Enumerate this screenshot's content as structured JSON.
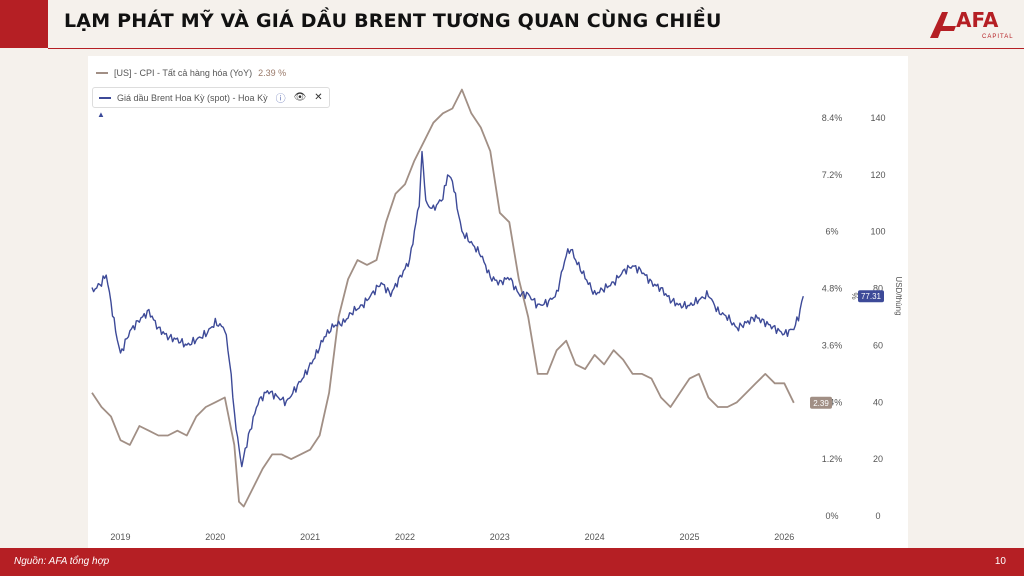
{
  "header": {
    "title": "LẠM PHÁT MỸ VÀ GIÁ DẦU BRENT TƯƠNG QUAN CÙNG CHIỀU",
    "logo_text": "AFA",
    "logo_sub": "CAPITAL"
  },
  "legend": {
    "series1_label": "[US] - CPI - Tất cả hàng hóa (YoY)",
    "series1_value": "2.39 %",
    "series2_label": "Giá dầu Brent Hoa Kỳ (spot) - Hoa Kỳ"
  },
  "footer": {
    "source": "Nguồn: AFA tổng hợp",
    "page": "10"
  },
  "chart_data": {
    "type": "line",
    "x_ticks": [
      "2019",
      "2020",
      "2021",
      "2022",
      "2023",
      "2024",
      "2025",
      "2026"
    ],
    "y_left_ticks": [
      "0%",
      "1.2%",
      "2.4%",
      "3.6%",
      "4.8%",
      "6%",
      "7.2%",
      "8.4%"
    ],
    "y_left_label": "%",
    "y_left_range": [
      0,
      8.4
    ],
    "y_right_ticks": [
      "0",
      "20",
      "40",
      "60",
      "80",
      "100",
      "120",
      "140"
    ],
    "y_right_label": "USD/thùng",
    "y_right_range": [
      0,
      140
    ],
    "x_range": [
      2018.7,
      2026.25
    ],
    "last_labels": {
      "cpi": "2.39",
      "oil": "77.31"
    },
    "colors": {
      "cpi": "#a18f85",
      "oil": "#3d4a98"
    },
    "series": [
      {
        "name": "[US] - CPI - Tất cả hàng hóa (YoY)",
        "axis": "left",
        "x": [
          2018.7,
          2018.8,
          2018.9,
          2019.0,
          2019.1,
          2019.2,
          2019.3,
          2019.4,
          2019.5,
          2019.6,
          2019.7,
          2019.8,
          2019.9,
          2020.0,
          2020.1,
          2020.2,
          2020.25,
          2020.3,
          2020.4,
          2020.5,
          2020.6,
          2020.7,
          2020.8,
          2020.9,
          2021.0,
          2021.1,
          2021.2,
          2021.3,
          2021.4,
          2021.5,
          2021.6,
          2021.7,
          2021.8,
          2021.9,
          2022.0,
          2022.1,
          2022.2,
          2022.3,
          2022.4,
          2022.5,
          2022.6,
          2022.7,
          2022.8,
          2022.9,
          2023.0,
          2023.1,
          2023.2,
          2023.3,
          2023.4,
          2023.5,
          2023.6,
          2023.7,
          2023.8,
          2023.9,
          2024.0,
          2024.1,
          2024.2,
          2024.3,
          2024.4,
          2024.5,
          2024.6,
          2024.7,
          2024.8,
          2024.9,
          2025.0,
          2025.1,
          2025.2,
          2025.3,
          2025.4,
          2025.5,
          2025.6,
          2025.7,
          2025.8,
          2025.9,
          2026.0,
          2026.1
        ],
        "y": [
          2.6,
          2.3,
          2.1,
          1.6,
          1.5,
          1.9,
          1.8,
          1.7,
          1.7,
          1.8,
          1.7,
          2.1,
          2.3,
          2.4,
          2.5,
          1.5,
          0.3,
          0.2,
          0.6,
          1.0,
          1.3,
          1.3,
          1.2,
          1.3,
          1.4,
          1.7,
          2.6,
          4.2,
          5.0,
          5.4,
          5.3,
          5.4,
          6.2,
          6.8,
          7.0,
          7.5,
          7.9,
          8.3,
          8.5,
          8.6,
          9.0,
          8.5,
          8.2,
          7.7,
          6.4,
          6.2,
          5.0,
          4.2,
          3.0,
          3.0,
          3.5,
          3.7,
          3.2,
          3.1,
          3.4,
          3.2,
          3.5,
          3.3,
          3.0,
          3.0,
          2.9,
          2.5,
          2.3,
          2.6,
          2.9,
          3.0,
          2.5,
          2.3,
          2.3,
          2.4,
          2.6,
          2.8,
          3.0,
          2.8,
          2.8,
          2.39
        ]
      },
      {
        "name": "Giá dầu Brent Hoa Kỳ (spot) - Hoa Kỳ",
        "axis": "right",
        "x": [
          2018.7,
          2018.8,
          2018.85,
          2018.95,
          2019.0,
          2019.1,
          2019.2,
          2019.3,
          2019.4,
          2019.5,
          2019.6,
          2019.7,
          2019.8,
          2019.9,
          2020.0,
          2020.1,
          2020.15,
          2020.22,
          2020.28,
          2020.35,
          2020.45,
          2020.55,
          2020.65,
          2020.75,
          2020.85,
          2020.95,
          2021.05,
          2021.15,
          2021.25,
          2021.35,
          2021.45,
          2021.55,
          2021.65,
          2021.75,
          2021.85,
          2021.95,
          2022.05,
          2022.15,
          2022.18,
          2022.22,
          2022.3,
          2022.4,
          2022.45,
          2022.5,
          2022.6,
          2022.7,
          2022.8,
          2022.9,
          2023.0,
          2023.1,
          2023.2,
          2023.3,
          2023.4,
          2023.5,
          2023.6,
          2023.7,
          2023.75,
          2023.8,
          2023.9,
          2024.0,
          2024.1,
          2024.2,
          2024.3,
          2024.4,
          2024.5,
          2024.6,
          2024.7,
          2024.8,
          2024.9,
          2025.0,
          2025.1,
          2025.2,
          2025.3,
          2025.4,
          2025.5,
          2025.6,
          2025.7,
          2025.8,
          2025.9,
          2026.0,
          2026.1,
          2026.15,
          2026.2
        ],
        "y": [
          79,
          82,
          85,
          65,
          57,
          65,
          69,
          72,
          66,
          63,
          62,
          60,
          62,
          64,
          68,
          66,
          55,
          30,
          18,
          28,
          40,
          44,
          42,
          40,
          45,
          50,
          56,
          63,
          67,
          68,
          72,
          74,
          78,
          82,
          78,
          84,
          90,
          110,
          128,
          110,
          108,
          112,
          120,
          118,
          100,
          96,
          92,
          84,
          82,
          84,
          78,
          78,
          74,
          75,
          78,
          92,
          94,
          90,
          84,
          78,
          80,
          82,
          86,
          88,
          86,
          82,
          80,
          76,
          74,
          74,
          76,
          78,
          72,
          70,
          66,
          68,
          70,
          68,
          66,
          64,
          66,
          70,
          77.31
        ]
      }
    ]
  }
}
